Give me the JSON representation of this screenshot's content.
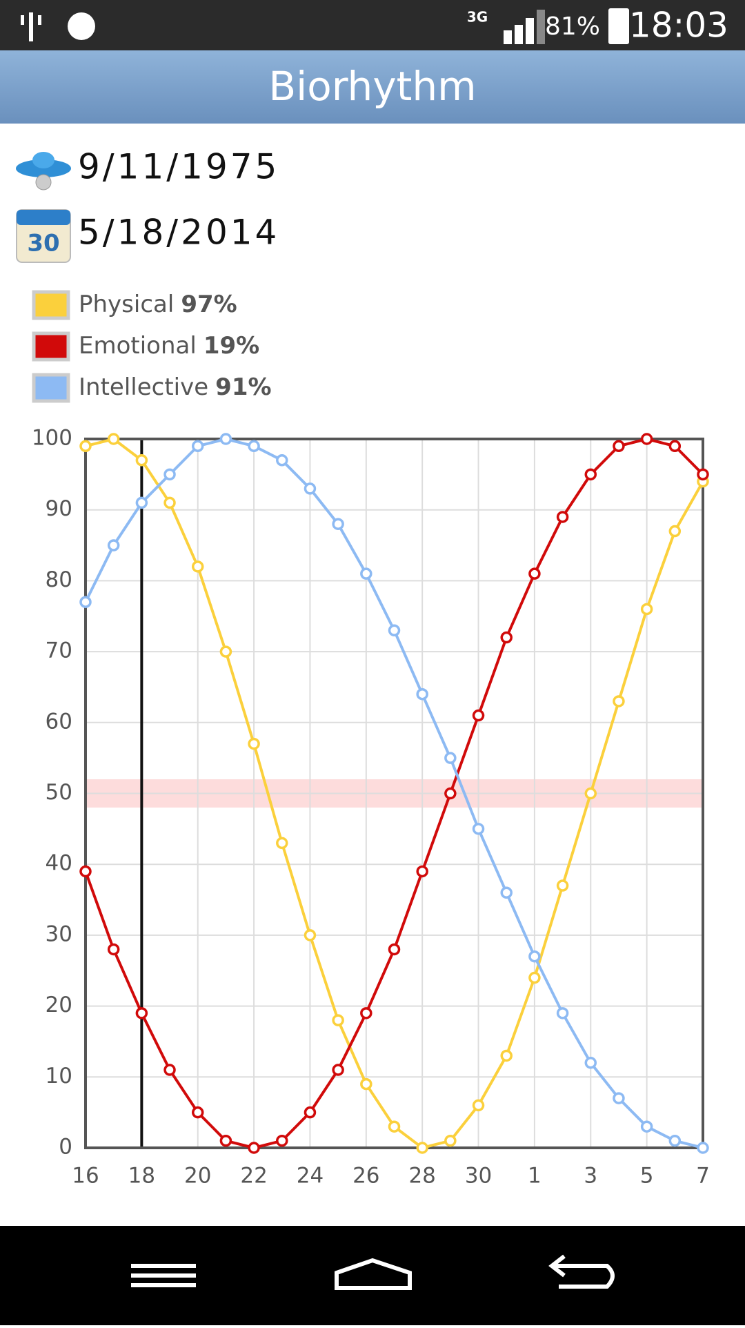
{
  "status_bar": {
    "network": "3G",
    "battery": "81%",
    "time": "18:03"
  },
  "header": {
    "title": "Biorhythm"
  },
  "dates": {
    "birth": "9/11/1975",
    "current": "5/18/2014"
  },
  "chart_data": {
    "type": "line",
    "categories": [
      16,
      null,
      18,
      null,
      20,
      null,
      22,
      null,
      24,
      null,
      26,
      null,
      28,
      null,
      30,
      null,
      1,
      null,
      3,
      null,
      5,
      null,
      7
    ],
    "series": [
      {
        "name": "Physical",
        "today_label": "97%",
        "color": "#fbd03c",
        "values": [
          99,
          100,
          97,
          91,
          82,
          70,
          57,
          43,
          30,
          18,
          9,
          3,
          0,
          1,
          6,
          13,
          24,
          37,
          50,
          63,
          76,
          87,
          94
        ]
      },
      {
        "name": "Emotional",
        "today_label": "19%",
        "color": "#d10a0a",
        "values": [
          39,
          28,
          19,
          11,
          5,
          1,
          0,
          1,
          5,
          11,
          19,
          28,
          39,
          50,
          61,
          72,
          81,
          89,
          95,
          99,
          100,
          99,
          95
        ]
      },
      {
        "name": "Intellective",
        "today_label": "91%",
        "color": "#8dbaf3",
        "values": [
          77,
          85,
          91,
          95,
          99,
          100,
          99,
          97,
          93,
          88,
          81,
          73,
          64,
          55,
          45,
          36,
          27,
          19,
          12,
          7,
          3,
          1,
          0
        ]
      }
    ],
    "ylim": [
      0,
      100
    ],
    "yticks": [
      0,
      10,
      20,
      30,
      40,
      50,
      60,
      70,
      80,
      90,
      100
    ],
    "grid": true,
    "marker_index": 2,
    "band": {
      "from": 48,
      "to": 52,
      "color": "#fddcdc"
    }
  }
}
